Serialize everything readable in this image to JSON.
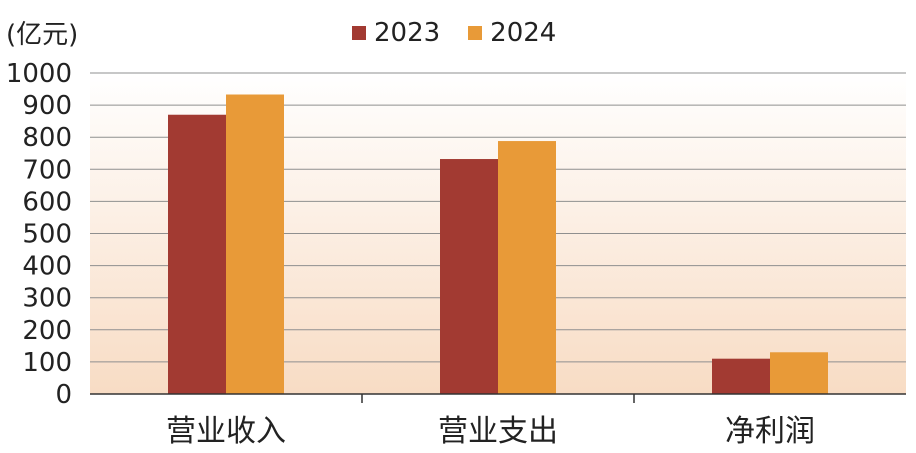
{
  "chart_data": {
    "type": "bar",
    "unit_label": "(亿元)",
    "categories": [
      "营业收入",
      "营业支出",
      "净利润"
    ],
    "series": [
      {
        "name": "2023",
        "color": "#a23a32",
        "values": [
          870,
          732,
          110
        ]
      },
      {
        "name": "2024",
        "color": "#e89a38",
        "values": [
          933,
          788,
          130
        ]
      }
    ],
    "yticks": [
      0,
      100,
      200,
      300,
      400,
      500,
      600,
      700,
      800,
      900,
      1000
    ],
    "ylim": [
      0,
      1000
    ],
    "grid": true,
    "legend_position": "top"
  }
}
